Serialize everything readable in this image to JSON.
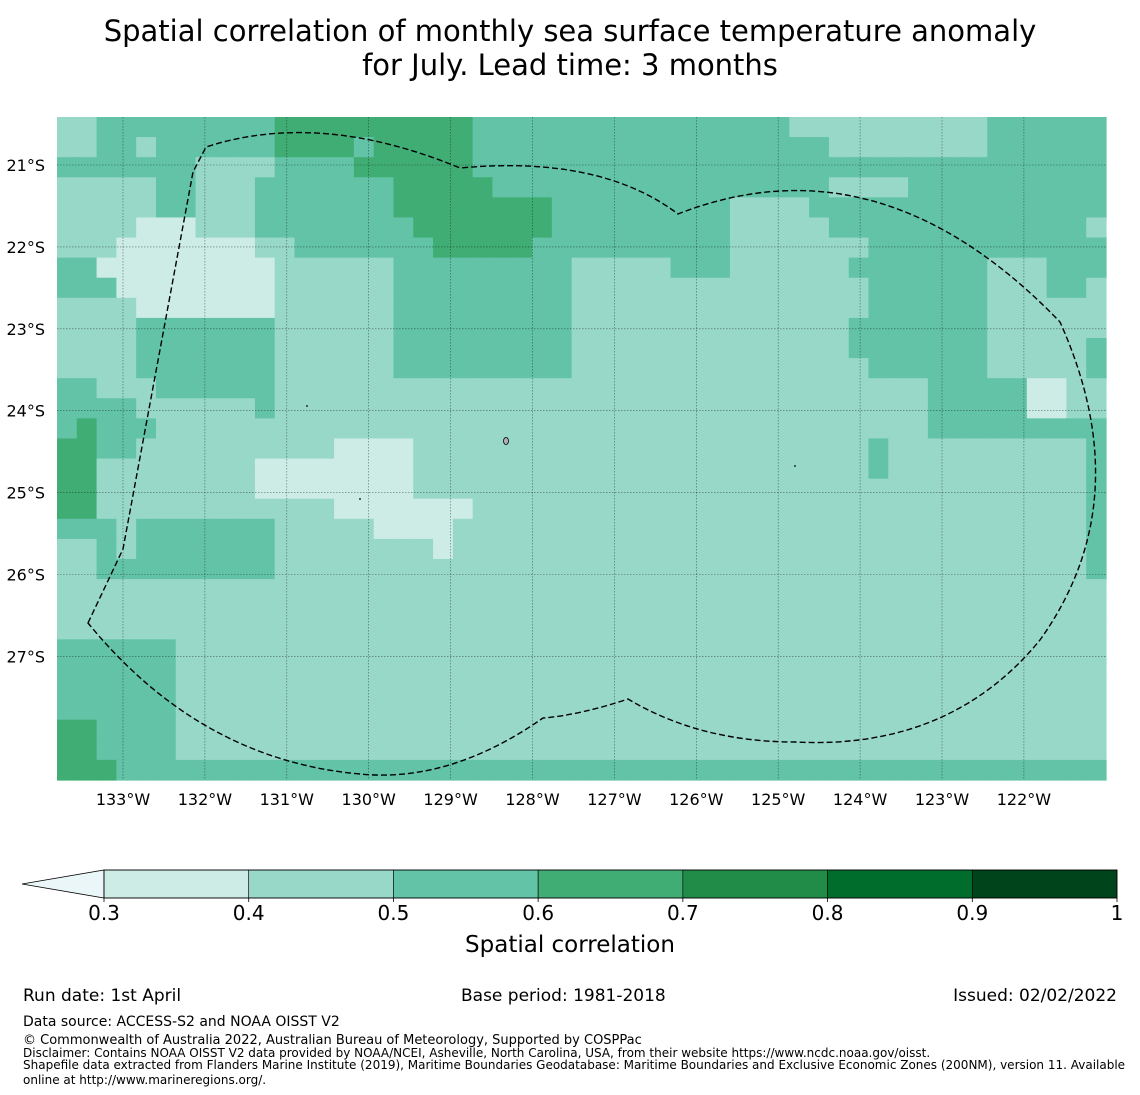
{
  "title_line1": "Spatial correlation of monthly sea surface temperature anomaly",
  "title_line2": "for July. Lead time: 3 months",
  "map": {
    "lon_ticks": [
      "133°W",
      "132°W",
      "131°W",
      "130°W",
      "129°W",
      "128°W",
      "127°W",
      "126°W",
      "125°W",
      "124°W",
      "123°W",
      "122°W"
    ],
    "lat_ticks": [
      "21°S",
      "22°S",
      "23°S",
      "24°S",
      "25°S",
      "26°S",
      "27°S"
    ],
    "cell_levels": [
      "11222222222333333333322222222222222221111111111222222",
      "11221222222333323333322222222222222222211111111222222",
      "22222221111222233333322222222222222222222222222222222",
      "11111221112222222333332222222222222222211112222222222",
      "11111221112222222333333332222222221111222222222222222",
      "11110001112222222233333332222222221111122222222222221",
      "11100000001122222223333322222222221111111222222222222",
      "22000000000111111222222222111112221111112222222111222",
      "22200000000111111222222222111111111111111222222111221",
      "11110000000111111222222222111111111111111222222111111",
      "11112222222111111222222222111111111111112222222111111",
      "11112222222111111222222222111111111111112222222111112",
      "11112222222111111222222222111111111111111222222111112",
      "22111222222111111111111111111111111111111111222220011",
      "22221111112111111111111111111111111111111111222220011",
      "23222111111111111111111111111111111111111111222222222",
      "33221111111111000011111111111111111111111211111111112",
      "33111111110000000011111111111111111111111211111111112",
      "33111111110000000011111111111111111111111111111111112",
      "33111111111111000000011111111111111111111111111111112",
      "22212222222111110000111111111111111111111111111111112",
      "11212222222111111110111111111111111111111111111111112",
      "11222222222111111111111111111111111111111111111111112",
      "11111111111111111111111111111111111111111111111111111",
      "11111111111111111111111111111111111111111111111111111",
      "11111111111111111111111111111111111111111111111111111",
      "22222211111111111111111111111111111111111111111111111",
      "22222211111111111111111111111111111111111111111111111",
      "22222211111111111111111111111111111111111111111111111",
      "22222211111111111111111111111111111111111111111111111",
      "33222211111111111111111111111111111111111111111111111",
      "33222211111111111111111111111111111111111111111111111",
      "33322222222222222222222222222222222222222222222222222"
    ],
    "colors": [
      "#cdece5",
      "#98d8c8",
      "#62c3a6",
      "#40ad75",
      "#218c47",
      "#006d2c",
      "#00441b"
    ]
  },
  "colorbar": {
    "ticks": [
      "0.3",
      "0.4",
      "0.5",
      "0.6",
      "0.7",
      "0.8",
      "0.9",
      "1"
    ],
    "label": "Spatial correlation",
    "extend_color": "#eaf6f8"
  },
  "footer": {
    "run_date": "Run date: 1st April",
    "base_period": "Base period: 1981-2018",
    "issued": "Issued: 02/02/2022",
    "data_source": "Data source: ACCESS-S2 and NOAA OISST V2",
    "copyright": "© Commonwealth of Australia 2022, Australian Bureau of Meteorology, Supported by COSPPac",
    "disclaimer": "Disclaimer: Contains NOAA OISST V2 data provided by NOAA/NCEI, Asheville, North Carolina, USA, from their website https://www.ncdc.noaa.gov/oisst.",
    "shapefile_line1": "Shapefile data extracted from Flanders Marine Institute (2019), Maritime Boundaries Geodatabase: Maritime Boundaries and Exclusive Economic Zones (200NM), version 11. Available",
    "shapefile_line2": "online at http://www.marineregions.org/."
  }
}
